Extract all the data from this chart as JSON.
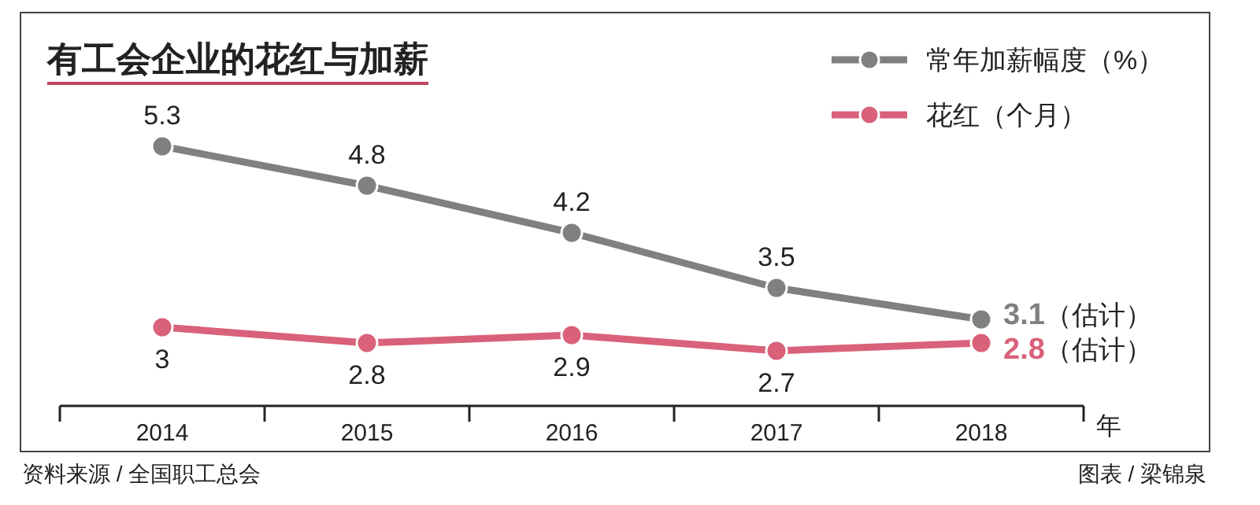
{
  "chart_data": {
    "type": "line",
    "title": "有工会企业的花红与加薪",
    "xlabel": "年",
    "categories": [
      "2014",
      "2015",
      "2016",
      "2017",
      "2018"
    ],
    "series": [
      {
        "name": "常年加薪幅度（%）",
        "color": "#808080",
        "values": [
          5.3,
          4.8,
          4.2,
          3.5,
          3.1
        ],
        "value_labels": [
          "5.3",
          "4.8",
          "4.2",
          "3.5",
          "3.1（估计）"
        ]
      },
      {
        "name": "花红（个月）",
        "color": "#d9617a",
        "values": [
          3,
          2.8,
          2.9,
          2.7,
          2.8
        ],
        "value_labels": [
          "3",
          "2.8",
          "2.9",
          "2.7",
          "2.8（估计）"
        ]
      }
    ],
    "legend": "top right",
    "marker": "circle",
    "line_style": "solid",
    "grid": false,
    "annotations": [
      "资料来源 / 全国职工总会",
      "图表 / 梁锦泉"
    ]
  }
}
